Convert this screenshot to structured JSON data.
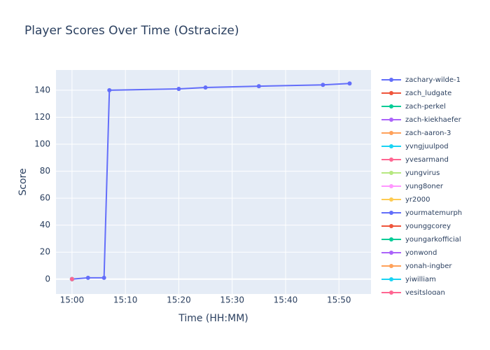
{
  "chart_data": {
    "type": "line",
    "title": "Player Scores Over Time (Ostracize)",
    "x_label": "Time (HH:MM)",
    "y_label": "Score",
    "xlim": [
      "14:57",
      "15:56"
    ],
    "xticks": [
      "15:00",
      "15:10",
      "15:20",
      "15:30",
      "15:40",
      "15:50"
    ],
    "ylim": [
      -11,
      155
    ],
    "yticks": [
      0,
      20,
      40,
      60,
      80,
      100,
      120,
      140
    ],
    "grid": true,
    "legend": "right",
    "series": [
      {
        "name": "zachary-wilde-1",
        "color": "#636efa",
        "x": [
          "15:00",
          "15:03",
          "15:06",
          "15:07",
          "15:20",
          "15:25",
          "15:35",
          "15:47",
          "15:52"
        ],
        "values": [
          0,
          1,
          1,
          140,
          141,
          142,
          143,
          144,
          145
        ]
      },
      {
        "name": "zach_ludgate",
        "color": "#EF553B",
        "x": [
          "15:00"
        ],
        "values": [
          0
        ]
      },
      {
        "name": "zach-perkel",
        "color": "#00cc96",
        "x": [
          "15:00"
        ],
        "values": [
          0
        ]
      },
      {
        "name": "zach-kiekhaefer",
        "color": "#ab63fa",
        "x": [
          "15:00"
        ],
        "values": [
          0
        ]
      },
      {
        "name": "zach-aaron-3",
        "color": "#FFA15A",
        "x": [
          "15:00"
        ],
        "values": [
          0
        ]
      },
      {
        "name": "yvngjuulpod",
        "color": "#19d3f3",
        "x": [
          "15:00"
        ],
        "values": [
          0
        ]
      },
      {
        "name": "yvesarmand",
        "color": "#FF6692",
        "x": [
          "15:00"
        ],
        "values": [
          0
        ]
      },
      {
        "name": "yungvirus",
        "color": "#B6E880",
        "x": [
          "15:00"
        ],
        "values": [
          0
        ]
      },
      {
        "name": "yung8oner",
        "color": "#FF97FF",
        "x": [
          "15:00"
        ],
        "values": [
          0
        ]
      },
      {
        "name": "yr2000",
        "color": "#FECB52",
        "x": [
          "15:00"
        ],
        "values": [
          0
        ]
      },
      {
        "name": "yourmatemurph",
        "color": "#636efa",
        "x": [
          "15:00"
        ],
        "values": [
          0
        ]
      },
      {
        "name": "younggcorey",
        "color": "#EF553B",
        "x": [
          "15:00"
        ],
        "values": [
          0
        ]
      },
      {
        "name": "youngarkofficial",
        "color": "#00cc96",
        "x": [
          "15:00"
        ],
        "values": [
          0
        ]
      },
      {
        "name": "yonwond",
        "color": "#ab63fa",
        "x": [
          "15:00"
        ],
        "values": [
          0
        ]
      },
      {
        "name": "yonah-ingber",
        "color": "#FFA15A",
        "x": [
          "15:00"
        ],
        "values": [
          0
        ]
      },
      {
        "name": "yiwilliam",
        "color": "#19d3f3",
        "x": [
          "15:00"
        ],
        "values": [
          0
        ]
      },
      {
        "name": "yesitslogan",
        "color": "#FF6692",
        "x": [
          "15:00"
        ],
        "values": [
          0
        ]
      }
    ]
  }
}
